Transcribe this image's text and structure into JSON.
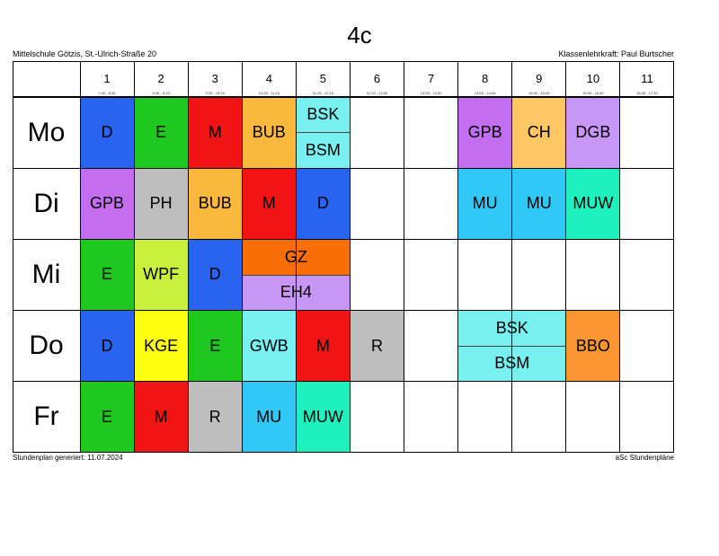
{
  "title": "4c",
  "school": "Mittelschule Götzis, St.-Ulrich-Straße 20",
  "teacher": "Klassenlehrkraft: Paul Burtscher",
  "footer_left": "Stundenplan generiert: 11.07.2024",
  "footer_right": "aSc Stundenpläne",
  "periods": [
    {
      "num": "1",
      "time": "7:45 - 8:35"
    },
    {
      "num": "2",
      "time": "8:35 - 9:15"
    },
    {
      "num": "3",
      "time": "9:25 - 10:15"
    },
    {
      "num": "4",
      "time": "10:35 - 11:15"
    },
    {
      "num": "5",
      "time": "11:25 - 12:15"
    },
    {
      "num": "6",
      "time": "12:15 - 13:00"
    },
    {
      "num": "7",
      "time": "13:00 - 13:50"
    },
    {
      "num": "8",
      "time": "13:55 - 14:45"
    },
    {
      "num": "9",
      "time": "14:50 - 15:40"
    },
    {
      "num": "10",
      "time": "15:50 - 16:40"
    },
    {
      "num": "11",
      "time": "16:45 - 17:30"
    }
  ],
  "days": [
    "Mo",
    "Di",
    "Mi",
    "Do",
    "Fr"
  ],
  "lessons": [
    {
      "day": 0,
      "period": 1,
      "span": 1,
      "part": "full",
      "subject": "D",
      "color": "#2864f0"
    },
    {
      "day": 0,
      "period": 2,
      "span": 1,
      "part": "full",
      "subject": "E",
      "color": "#1ec81e"
    },
    {
      "day": 0,
      "period": 3,
      "span": 1,
      "part": "full",
      "subject": "M",
      "color": "#f01414"
    },
    {
      "day": 0,
      "period": 4,
      "span": 1,
      "part": "full",
      "subject": "BUB",
      "color": "#fab93c"
    },
    {
      "day": 0,
      "period": 5,
      "span": 1,
      "part": "top",
      "subject": "BSK",
      "color": "#78f0f0"
    },
    {
      "day": 0,
      "period": 5,
      "span": 1,
      "part": "bottom",
      "subject": "BSM",
      "color": "#78f0f0"
    },
    {
      "day": 0,
      "period": 8,
      "span": 1,
      "part": "full",
      "subject": "GPB",
      "color": "#c36ef0"
    },
    {
      "day": 0,
      "period": 9,
      "span": 1,
      "part": "full",
      "subject": "CH",
      "color": "#ffc864"
    },
    {
      "day": 0,
      "period": 10,
      "span": 1,
      "part": "full",
      "subject": "DGB",
      "color": "#c896f5"
    },
    {
      "day": 1,
      "period": 1,
      "span": 1,
      "part": "full",
      "subject": "GPB",
      "color": "#c36ef0"
    },
    {
      "day": 1,
      "period": 2,
      "span": 1,
      "part": "full",
      "subject": "PH",
      "color": "#bebebe"
    },
    {
      "day": 1,
      "period": 3,
      "span": 1,
      "part": "full",
      "subject": "BUB",
      "color": "#fab93c"
    },
    {
      "day": 1,
      "period": 4,
      "span": 1,
      "part": "full",
      "subject": "M",
      "color": "#f01414"
    },
    {
      "day": 1,
      "period": 5,
      "span": 1,
      "part": "full",
      "subject": "D",
      "color": "#2864f0"
    },
    {
      "day": 1,
      "period": 8,
      "span": 1,
      "part": "full",
      "subject": "MU",
      "color": "#32c8f5"
    },
    {
      "day": 1,
      "period": 9,
      "span": 1,
      "part": "full",
      "subject": "MU",
      "color": "#32c8f5"
    },
    {
      "day": 1,
      "period": 10,
      "span": 1,
      "part": "full",
      "subject": "MUW",
      "color": "#1ef0be"
    },
    {
      "day": 2,
      "period": 1,
      "span": 1,
      "part": "full",
      "subject": "E",
      "color": "#1ec81e"
    },
    {
      "day": 2,
      "period": 2,
      "span": 1,
      "part": "full",
      "subject": "WPF",
      "color": "#c8f03c"
    },
    {
      "day": 2,
      "period": 3,
      "span": 1,
      "part": "full",
      "subject": "D",
      "color": "#2864f0"
    },
    {
      "day": 2,
      "period": 4,
      "span": 2,
      "part": "top",
      "subject": "GZ",
      "color": "#fa6e0a"
    },
    {
      "day": 2,
      "period": 4,
      "span": 2,
      "part": "bottom",
      "subject": "EH4",
      "color": "#c896f5"
    },
    {
      "day": 3,
      "period": 1,
      "span": 1,
      "part": "full",
      "subject": "D",
      "color": "#2864f0"
    },
    {
      "day": 3,
      "period": 2,
      "span": 1,
      "part": "full",
      "subject": "KGE",
      "color": "#ffff14"
    },
    {
      "day": 3,
      "period": 3,
      "span": 1,
      "part": "full",
      "subject": "E",
      "color": "#1ec81e"
    },
    {
      "day": 3,
      "period": 4,
      "span": 1,
      "part": "full",
      "subject": "GWB",
      "color": "#78f0f0"
    },
    {
      "day": 3,
      "period": 5,
      "span": 1,
      "part": "full",
      "subject": "M",
      "color": "#f01414"
    },
    {
      "day": 3,
      "period": 6,
      "span": 1,
      "part": "full",
      "subject": "R",
      "color": "#bebebe"
    },
    {
      "day": 3,
      "period": 8,
      "span": 2,
      "part": "top",
      "subject": "BSK",
      "color": "#78f0f0"
    },
    {
      "day": 3,
      "period": 8,
      "span": 2,
      "part": "bottom",
      "subject": "BSM",
      "color": "#78f0f0"
    },
    {
      "day": 3,
      "period": 10,
      "span": 1,
      "part": "full",
      "subject": "BBO",
      "color": "#fa9632"
    },
    {
      "day": 4,
      "period": 1,
      "span": 1,
      "part": "full",
      "subject": "E",
      "color": "#1ec81e"
    },
    {
      "day": 4,
      "period": 2,
      "span": 1,
      "part": "full",
      "subject": "M",
      "color": "#f01414"
    },
    {
      "day": 4,
      "period": 3,
      "span": 1,
      "part": "full",
      "subject": "R",
      "color": "#bebebe"
    },
    {
      "day": 4,
      "period": 4,
      "span": 1,
      "part": "full",
      "subject": "MU",
      "color": "#32c8f5"
    },
    {
      "day": 4,
      "period": 5,
      "span": 1,
      "part": "full",
      "subject": "MUW",
      "color": "#1ef0be"
    }
  ]
}
